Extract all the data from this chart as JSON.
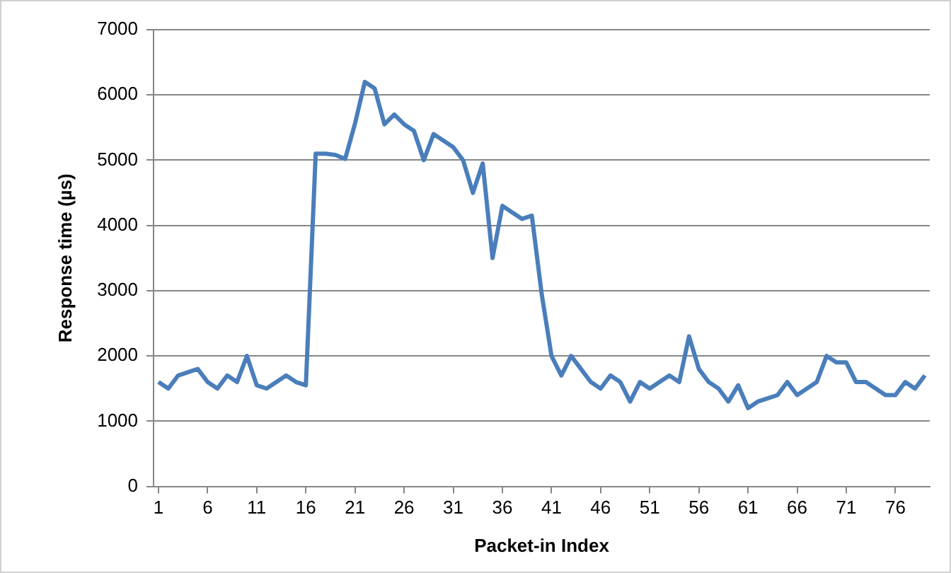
{
  "chart_data": {
    "type": "line",
    "xlabel": "Packet-in Index",
    "ylabel": "Response time (µs)",
    "x": [
      1,
      2,
      3,
      4,
      5,
      6,
      7,
      8,
      9,
      10,
      11,
      12,
      13,
      14,
      15,
      16,
      17,
      18,
      19,
      20,
      21,
      22,
      23,
      24,
      25,
      26,
      27,
      28,
      29,
      30,
      31,
      32,
      33,
      34,
      35,
      36,
      37,
      38,
      39,
      40,
      41,
      42,
      43,
      44,
      45,
      46,
      47,
      48,
      49,
      50,
      51,
      52,
      53,
      54,
      55,
      56,
      57,
      58,
      59,
      60,
      61,
      62,
      63,
      64,
      65,
      66,
      67,
      68,
      69,
      70,
      71,
      72,
      73,
      74,
      75,
      76,
      77,
      78,
      79
    ],
    "series": [
      {
        "color": "#4a7ebb",
        "values": [
          1600,
          1500,
          1700,
          1750,
          1800,
          1600,
          1500,
          1700,
          1600,
          2000,
          1550,
          1500,
          1600,
          1700,
          1600,
          1550,
          5100,
          5100,
          5080,
          5020,
          5560,
          6200,
          6100,
          5550,
          5700,
          5550,
          5450,
          5000,
          5400,
          5300,
          5200,
          5000,
          4500,
          4950,
          3500,
          4300,
          4200,
          4100,
          4150,
          2950,
          2000,
          1700,
          2000,
          1800,
          1600,
          1500,
          1700,
          1600,
          1300,
          1600,
          1500,
          1600,
          1700,
          1600,
          2300,
          1800,
          1600,
          1500,
          1300,
          1550,
          1200,
          1300,
          1350,
          1400,
          1600,
          1400,
          1500,
          1600,
          2000,
          1900,
          1900,
          1600,
          1600,
          1500,
          1400,
          1400,
          1600,
          1500,
          1700
        ]
      }
    ],
    "xlim": [
      0.5,
      79.5
    ],
    "xticks": [
      1,
      6,
      11,
      16,
      21,
      26,
      31,
      36,
      41,
      46,
      51,
      56,
      61,
      66,
      71,
      76
    ],
    "ylim": [
      0,
      7000
    ],
    "yticks": [
      0,
      1000,
      2000,
      3000,
      4000,
      5000,
      6000,
      7000
    ],
    "grid": "y",
    "legend": false,
    "marker": "none",
    "line_style": "solid"
  }
}
